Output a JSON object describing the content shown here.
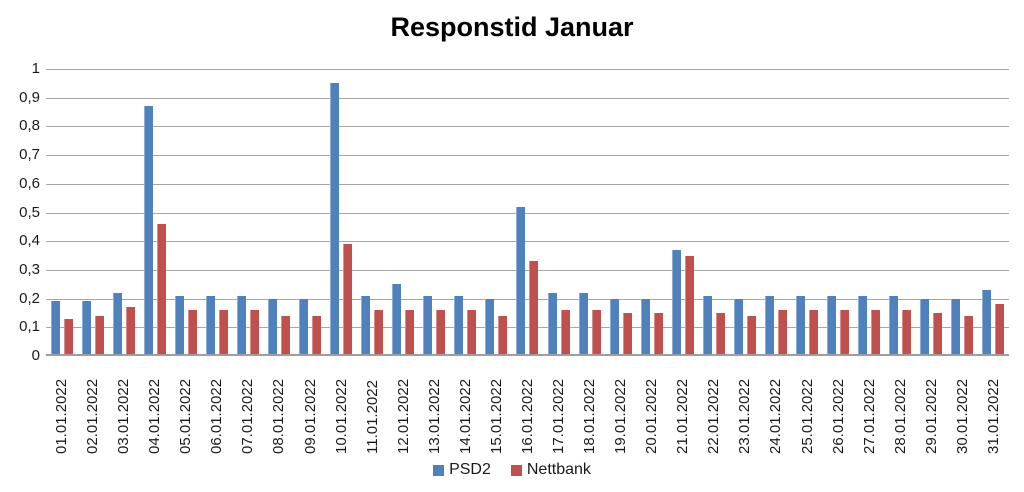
{
  "title": "Responstid Januar",
  "legend": {
    "psd2_label": "PSD2",
    "nettbank_label": "Nettbank"
  },
  "chart_data": {
    "type": "bar",
    "title": "Responstid Januar",
    "categories": [
      "01.01.2022",
      "02.01.2022",
      "03.01.2022",
      "04.01.2022",
      "05.01.2022",
      "06.01.2022",
      "07.01.2022",
      "08.01.2022",
      "09.01.2022",
      "10.01.2022",
      "11.01.2022",
      "12.01.2022",
      "13.01.2022",
      "14.01.2022",
      "15.01.2022",
      "16.01.2022",
      "17.01.2022",
      "18.01.2022",
      "19.01.2022",
      "20.01.2022",
      "21.01.2022",
      "22.01.2022",
      "23.01.2022",
      "24.01.2022",
      "25.01.2022",
      "26.01.2022",
      "27.01.2022",
      "28.01.2022",
      "29.01.2022",
      "30.01.2022",
      "31.01.2022"
    ],
    "series": [
      {
        "name": "PSD2",
        "color": "#4F81BD",
        "values": [
          0.19,
          0.19,
          0.22,
          0.87,
          0.21,
          0.21,
          0.21,
          0.2,
          0.2,
          0.95,
          0.21,
          0.25,
          0.21,
          0.21,
          0.2,
          0.52,
          0.22,
          0.22,
          0.2,
          0.2,
          0.37,
          0.21,
          0.2,
          0.21,
          0.21,
          0.21,
          0.21,
          0.21,
          0.2,
          0.2,
          0.23
        ]
      },
      {
        "name": "Nettbank",
        "color": "#C0504D",
        "values": [
          0.13,
          0.14,
          0.17,
          0.46,
          0.16,
          0.16,
          0.16,
          0.14,
          0.14,
          0.39,
          0.16,
          0.16,
          0.16,
          0.16,
          0.14,
          0.33,
          0.16,
          0.16,
          0.15,
          0.15,
          0.35,
          0.15,
          0.14,
          0.16,
          0.16,
          0.16,
          0.16,
          0.16,
          0.15,
          0.14,
          0.18
        ]
      }
    ],
    "xlabel": "",
    "ylabel": "",
    "ylim": [
      0,
      1
    ],
    "ytick_step": 0.1,
    "ytick_labels_top_to_bottom": [
      "1",
      "0,9",
      "0,8",
      "0,7",
      "0,6",
      "0,5",
      "0,4",
      "0,3",
      "0,2",
      "0,1",
      "0"
    ],
    "grid": true,
    "legend_position": "bottom"
  }
}
